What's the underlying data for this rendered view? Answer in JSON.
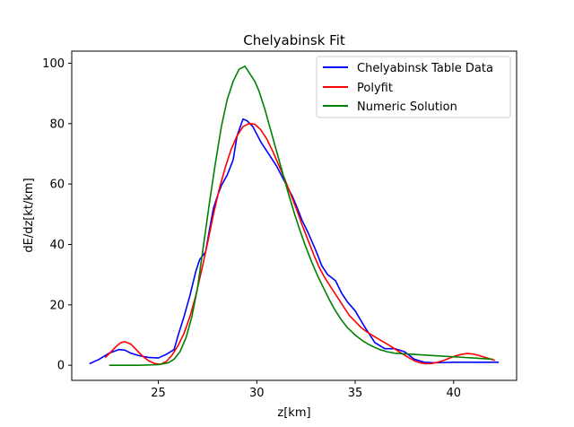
{
  "chart_data": {
    "type": "line",
    "title": "Chelyabinsk Fit",
    "xlabel": "z[km]",
    "ylabel": "dE/dz[kt/km]",
    "xlim": [
      20.6,
      43.2
    ],
    "ylim": [
      -5,
      104
    ],
    "xticks": [
      25,
      30,
      35,
      40
    ],
    "yticks": [
      0,
      20,
      40,
      60,
      80,
      100
    ],
    "grid": false,
    "legend_position": "top-right",
    "series": [
      {
        "name": "Chelyabinsk Table Data",
        "color": "#0000ff",
        "x": [
          21.5,
          22.0,
          22.5,
          23.0,
          23.3,
          23.6,
          24.0,
          24.5,
          25.0,
          25.4,
          25.8,
          26.0,
          26.3,
          26.6,
          26.9,
          27.1,
          27.4,
          27.6,
          27.8,
          28.0,
          28.2,
          28.5,
          28.8,
          29.0,
          29.3,
          29.5,
          29.8,
          30.2,
          30.6,
          31.0,
          31.4,
          31.8,
          32.0,
          32.3,
          32.6,
          33.0,
          33.3,
          33.6,
          34.0,
          34.3,
          34.6,
          35.0,
          35.5,
          36.0,
          36.5,
          37.0,
          37.5,
          38.0,
          38.5,
          39.0,
          39.5,
          40.0,
          40.5,
          41.0,
          41.5,
          42.0,
          42.3
        ],
        "y": [
          0.5,
          2.0,
          4.0,
          5.2,
          5.0,
          4.0,
          3.2,
          2.6,
          2.4,
          3.6,
          5.2,
          9.8,
          16.0,
          23.0,
          31.0,
          35.0,
          37.5,
          45.0,
          52.0,
          56.0,
          59.5,
          63.0,
          68.0,
          76.0,
          81.5,
          81.0,
          79.0,
          74.0,
          70.0,
          66.0,
          61.0,
          56.0,
          53.0,
          48.0,
          44.0,
          38.0,
          33.0,
          30.0,
          28.0,
          24.0,
          21.0,
          18.0,
          12.5,
          7.5,
          5.5,
          5.5,
          4.5,
          2.0,
          1.0,
          0.8,
          0.9,
          1.0,
          1.0,
          1.0,
          1.0,
          1.0,
          1.0
        ]
      },
      {
        "name": "Polyfit",
        "color": "#ff0000",
        "x": [
          22.3,
          22.6,
          22.9,
          23.1,
          23.3,
          23.6,
          23.9,
          24.2,
          24.5,
          24.8,
          25.1,
          25.4,
          25.7,
          26.0,
          26.3,
          26.6,
          26.9,
          27.2,
          27.5,
          27.8,
          28.1,
          28.4,
          28.7,
          29.0,
          29.3,
          29.6,
          29.9,
          30.2,
          30.5,
          30.8,
          31.1,
          31.4,
          31.7,
          32.0,
          32.3,
          32.6,
          32.9,
          33.2,
          33.5,
          33.8,
          34.1,
          34.4,
          34.7,
          35.0,
          35.3,
          35.6,
          35.9,
          36.2,
          36.5,
          36.8,
          37.1,
          37.4,
          37.7,
          38.0,
          38.3,
          38.6,
          38.9,
          39.2,
          39.5,
          39.8,
          40.1,
          40.4,
          40.7,
          41.0,
          41.3,
          41.6,
          41.9,
          42.1
        ],
        "y": [
          2.5,
          4.5,
          6.5,
          7.5,
          7.8,
          7.0,
          5.0,
          3.0,
          1.5,
          0.6,
          0.3,
          1.2,
          3.4,
          6.5,
          10.5,
          16.0,
          23.0,
          31.5,
          40.5,
          50.0,
          58.5,
          65.5,
          71.5,
          76.0,
          79.0,
          80.0,
          79.8,
          78.0,
          75.0,
          71.0,
          66.5,
          62.0,
          57.0,
          52.0,
          46.5,
          41.5,
          36.5,
          32.0,
          28.5,
          25.5,
          22.5,
          19.5,
          16.5,
          14.5,
          12.5,
          11.0,
          9.8,
          8.6,
          7.5,
          6.3,
          5.0,
          3.8,
          2.6,
          1.5,
          0.8,
          0.5,
          0.6,
          1.0,
          1.6,
          2.4,
          3.1,
          3.6,
          3.9,
          3.7,
          3.2,
          2.6,
          2.0,
          1.6
        ]
      },
      {
        "name": "Numeric Solution",
        "color": "#008000",
        "x": [
          22.5,
          23.0,
          24.0,
          25.0,
          25.5,
          25.8,
          26.1,
          26.4,
          26.7,
          27.0,
          27.3,
          27.6,
          27.9,
          28.2,
          28.5,
          28.8,
          29.1,
          29.4,
          29.6,
          29.9,
          30.1,
          30.4,
          30.7,
          31.0,
          31.3,
          31.6,
          31.9,
          32.2,
          32.5,
          32.8,
          33.1,
          33.4,
          33.7,
          34.0,
          34.3,
          34.6,
          35.0,
          35.4,
          35.8,
          36.2,
          36.6,
          37.0,
          38.0,
          39.0,
          40.0,
          41.0,
          42.0
        ],
        "y": [
          0.0,
          0.0,
          0.0,
          0.2,
          0.8,
          2.0,
          4.5,
          9.0,
          16.0,
          26.0,
          40.0,
          54.0,
          67.0,
          79.0,
          88.0,
          94.0,
          98.0,
          99.0,
          97.0,
          94.0,
          91.0,
          85.0,
          78.0,
          71.0,
          64.0,
          57.0,
          50.5,
          44.5,
          39.0,
          34.0,
          29.5,
          25.5,
          21.5,
          18.0,
          15.0,
          12.5,
          10.0,
          8.0,
          6.5,
          5.3,
          4.5,
          4.0,
          3.6,
          3.2,
          2.8,
          2.4,
          2.0
        ]
      }
    ]
  }
}
